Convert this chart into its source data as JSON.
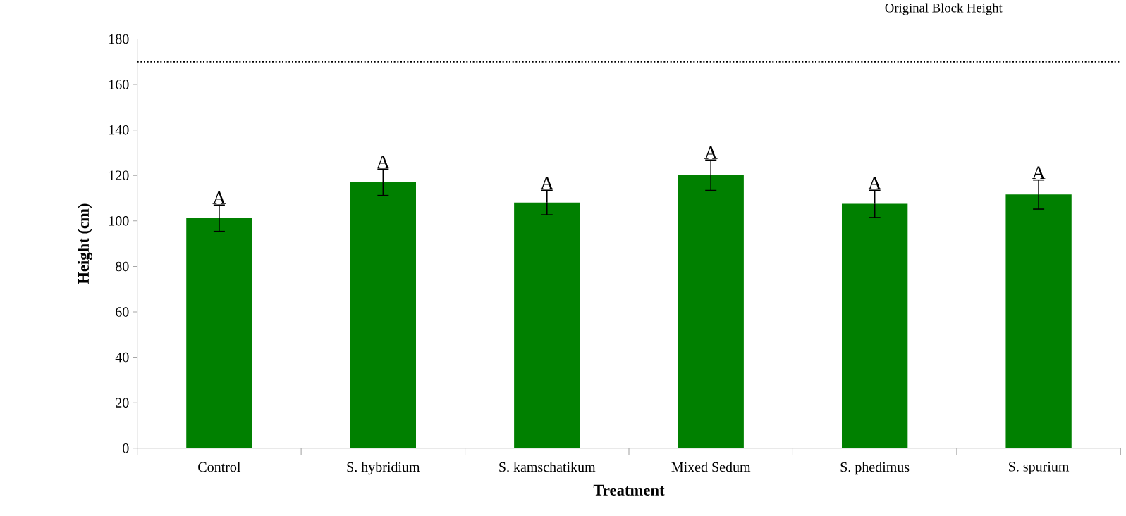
{
  "chart_data": {
    "type": "bar",
    "xlabel": "Treatment",
    "ylabel": "Height (cm)",
    "categories": [
      "Control",
      "S. hybridium",
      "S. kamschatikum",
      "Mixed Sedum",
      "S. phedimus",
      "S. spurium"
    ],
    "values": [
      101.2,
      117,
      108.1,
      120.1,
      107.5,
      111.6
    ],
    "errors": [
      5.8,
      5.8,
      5.4,
      6.7,
      6,
      6.4
    ],
    "color": "#008000",
    "ylim": [
      0,
      180
    ],
    "yticks": [
      0,
      20,
      40,
      60,
      80,
      100,
      120,
      140,
      160,
      180
    ],
    "ref_lines": [
      {
        "axis": "y",
        "value": 170,
        "label": "Original Block Height",
        "color": "#000000",
        "line_style": "dotted"
      }
    ],
    "annotations": [
      {
        "text": "A",
        "x": "Control",
        "y": 107
      },
      {
        "text": "A",
        "x": "S. hybridium",
        "y": 122.8
      },
      {
        "text": "A",
        "x": "S. kamschatikum",
        "y": 113.5
      },
      {
        "text": "A",
        "x": "Mixed Sedum",
        "y": 126.8
      },
      {
        "text": "A",
        "x": "S. phedimus",
        "y": 113.5
      },
      {
        "text": "A",
        "x": "S. spurium",
        "y": 118
      }
    ]
  }
}
